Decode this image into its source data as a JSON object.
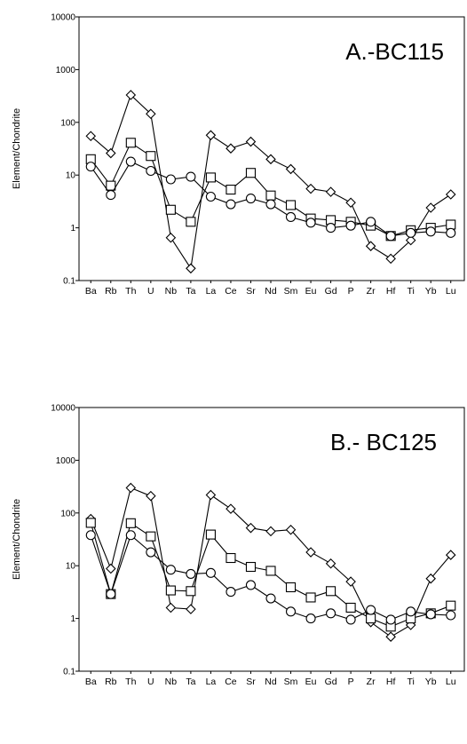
{
  "chart_data": [
    {
      "type": "line",
      "title": "A.-BC115",
      "ylabel": "Element/Chondrite",
      "yscale": "log",
      "ylim": [
        0.1,
        10000
      ],
      "yticks": [
        "0.1",
        "1",
        "10",
        "100",
        "1000",
        "10000"
      ],
      "grid": false,
      "categories": [
        "Ba",
        "Rb",
        "Th",
        "U",
        "Nb",
        "Ta",
        "La",
        "Ce",
        "Sr",
        "Nd",
        "Sm",
        "Eu",
        "Gd",
        "P",
        "Zr",
        "Hf",
        "Ti",
        "Yb",
        "Lu"
      ],
      "series": [
        {
          "marker": "diamond",
          "values": [
            55,
            26,
            330,
            145,
            0.65,
            0.17,
            57,
            32,
            43,
            20,
            13,
            5.5,
            4.8,
            3.0,
            0.45,
            0.26,
            0.58,
            2.4,
            4.3
          ]
        },
        {
          "marker": "square",
          "values": [
            20,
            6.3,
            41,
            23,
            2.2,
            1.3,
            9.0,
            5.3,
            11,
            4.1,
            2.7,
            1.5,
            1.4,
            1.3,
            1.1,
            0.7,
            0.9,
            1.0,
            1.15
          ]
        },
        {
          "marker": "circle",
          "values": [
            14.5,
            4.2,
            18,
            12,
            8.3,
            9.3,
            3.9,
            2.8,
            3.6,
            2.8,
            1.6,
            1.25,
            1.0,
            1.1,
            1.3,
            0.7,
            0.8,
            0.85,
            0.8
          ]
        }
      ]
    },
    {
      "type": "line",
      "title": "B.- BC125",
      "ylabel": "Element/Chondrite",
      "yscale": "log",
      "ylim": [
        0.1,
        10000
      ],
      "yticks": [
        "0.1",
        "1",
        "10",
        "100",
        "1000",
        "10000"
      ],
      "grid": false,
      "categories": [
        "Ba",
        "Rb",
        "Th",
        "U",
        "Nb",
        "Ta",
        "La",
        "Ce",
        "Sr",
        "Nd",
        "Sm",
        "Eu",
        "Gd",
        "P",
        "Zr",
        "Hf",
        "Ti",
        "Yb",
        "Lu"
      ],
      "series": [
        {
          "marker": "diamond",
          "values": [
            77,
            8.8,
            300,
            210,
            1.6,
            1.5,
            220,
            120,
            52,
            45,
            48,
            18,
            11,
            5.0,
            0.85,
            0.45,
            0.75,
            5.7,
            16
          ]
        },
        {
          "marker": "square",
          "values": [
            65,
            2.9,
            64,
            36,
            3.4,
            3.3,
            39,
            14,
            9.5,
            8.0,
            3.9,
            2.5,
            3.3,
            1.6,
            1.0,
            0.7,
            1.0,
            1.25,
            1.75
          ]
        },
        {
          "marker": "circle",
          "values": [
            38,
            2.9,
            38,
            18,
            8.4,
            7.0,
            7.3,
            3.2,
            4.3,
            2.4,
            1.35,
            1.0,
            1.25,
            0.95,
            1.45,
            0.95,
            1.35,
            1.2,
            1.15
          ]
        }
      ]
    }
  ]
}
